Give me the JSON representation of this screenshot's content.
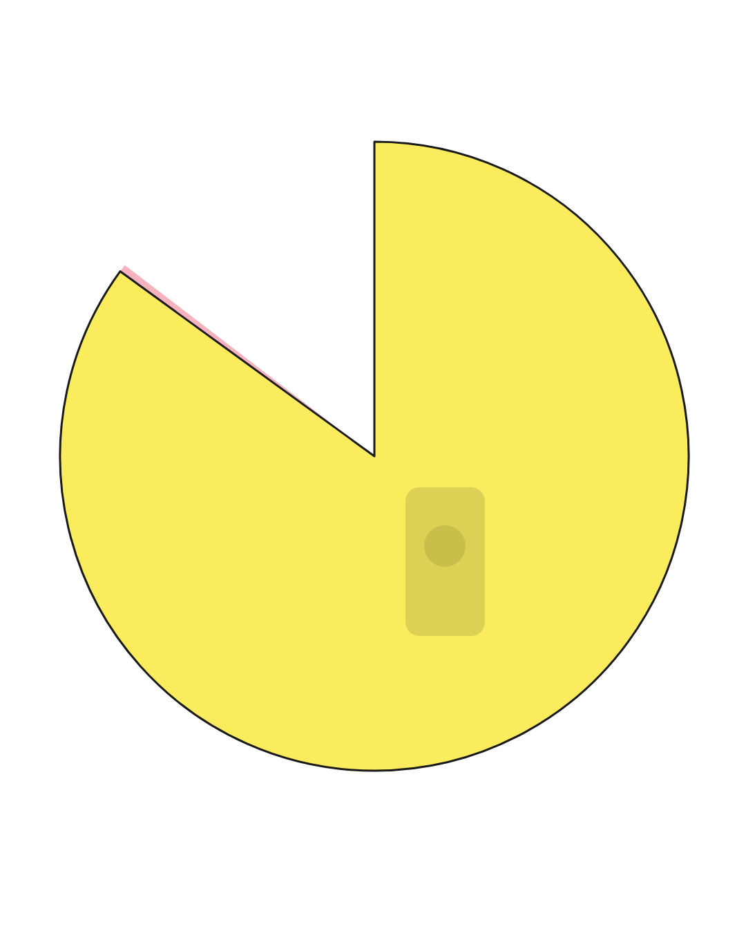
{
  "chart_data": {
    "type": "pie",
    "categories": [
      null,
      null,
      null
    ],
    "values": [
      85,
      0.4,
      14.6
    ],
    "colors": [
      "#fbec5d",
      "#f6b3bd",
      "#ffffff"
    ]
  }
}
